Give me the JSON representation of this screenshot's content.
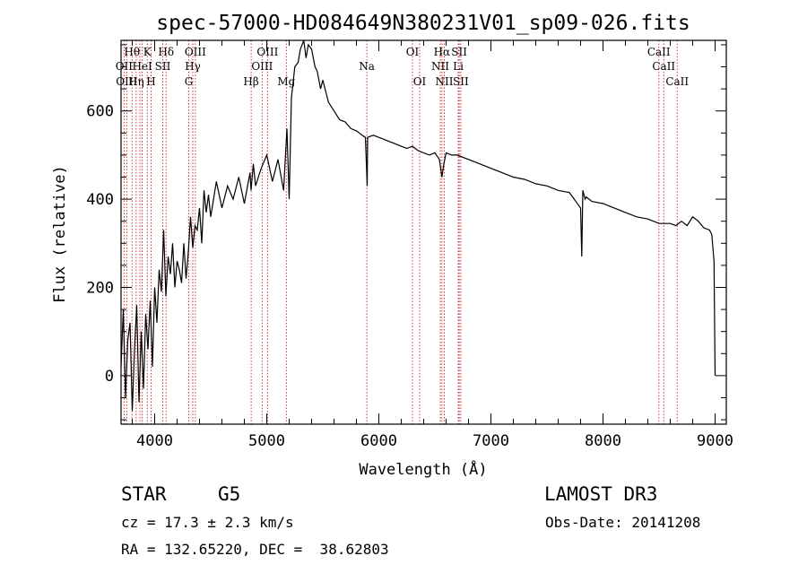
{
  "chart_data": {
    "type": "line",
    "title": "spec-57000-HD084649N380231V01_sp09-026.fits",
    "xlabel": "Wavelength (Å)",
    "ylabel": "Flux (relative)",
    "xlim": [
      3700,
      9100
    ],
    "ylim": [
      -110,
      760
    ],
    "xticks": [
      4000,
      5000,
      6000,
      7000,
      8000,
      9000
    ],
    "yticks": [
      0,
      200,
      400,
      600
    ],
    "grid": false,
    "series": [
      {
        "x": [
          3700,
          3720,
          3740,
          3760,
          3780,
          3800,
          3820,
          3840,
          3860,
          3880,
          3900,
          3920,
          3940,
          3960,
          3980,
          4000,
          4020,
          4040,
          4060,
          4080,
          4100,
          4120,
          4140,
          4160,
          4180,
          4200,
          4220,
          4240,
          4260,
          4280,
          4300,
          4320,
          4340,
          4360,
          4380,
          4400,
          4420,
          4440,
          4460,
          4480,
          4500,
          4550,
          4600,
          4650,
          4700,
          4750,
          4800,
          4850,
          4860,
          4880,
          4900,
          4950,
          5000,
          5050,
          5100,
          5150,
          5180,
          5200,
          5220,
          5250,
          5280,
          5300,
          5330,
          5350,
          5370,
          5400,
          5430,
          5450,
          5480,
          5500,
          5550,
          5600,
          5650,
          5700,
          5750,
          5800,
          5850,
          5880,
          5890,
          5896,
          5900,
          5950,
          6000,
          6050,
          6100,
          6150,
          6200,
          6250,
          6300,
          6350,
          6400,
          6450,
          6500,
          6540,
          6563,
          6580,
          6600,
          6650,
          6700,
          6750,
          6800,
          6900,
          7000,
          7100,
          7200,
          7300,
          7400,
          7500,
          7600,
          7700,
          7800,
          7810,
          7820,
          7830,
          7840,
          7850,
          7900,
          8000,
          8100,
          8200,
          8300,
          8400,
          8500,
          8600,
          8650,
          8700,
          8750,
          8800,
          8850,
          8900,
          8950,
          8970,
          8990,
          9000
        ],
        "values": [
          20,
          150,
          -50,
          80,
          120,
          -80,
          60,
          160,
          -60,
          100,
          -30,
          140,
          60,
          170,
          20,
          200,
          120,
          240,
          190,
          330,
          180,
          270,
          230,
          300,
          200,
          260,
          240,
          210,
          300,
          220,
          280,
          360,
          290,
          340,
          330,
          380,
          300,
          420,
          370,
          410,
          360,
          440,
          380,
          430,
          400,
          450,
          390,
          460,
          420,
          480,
          430,
          470,
          500,
          440,
          490,
          420,
          560,
          400,
          630,
          700,
          710,
          740,
          760,
          720,
          750,
          740,
          700,
          690,
          650,
          670,
          620,
          600,
          580,
          575,
          560,
          555,
          545,
          540,
          470,
          430,
          540,
          545,
          540,
          535,
          530,
          525,
          520,
          515,
          520,
          510,
          505,
          500,
          505,
          490,
          450,
          480,
          505,
          500,
          500,
          495,
          490,
          480,
          470,
          460,
          450,
          445,
          435,
          430,
          420,
          415,
          380,
          270,
          420,
          410,
          400,
          405,
          395,
          390,
          380,
          370,
          360,
          355,
          345,
          345,
          340,
          350,
          340,
          360,
          350,
          335,
          330,
          320,
          260,
          0
        ]
      }
    ],
    "lines": [
      {
        "w": 3727,
        "label": "OII",
        "row": 1
      },
      {
        "w": 3750,
        "label": "OIII",
        "row": 2
      },
      {
        "w": 3798,
        "label": "Hθ",
        "row": 0
      },
      {
        "w": 3835,
        "label": "Hη",
        "row": 2
      },
      {
        "w": 3868,
        "label": "",
        "row": 0
      },
      {
        "w": 3889,
        "label": "HeI",
        "row": 1
      },
      {
        "w": 3934,
        "label": "K",
        "row": 0
      },
      {
        "w": 3968,
        "label": "H",
        "row": 2
      },
      {
        "w": 4072,
        "label": "SII",
        "row": 1
      },
      {
        "w": 4102,
        "label": "Hδ",
        "row": 0
      },
      {
        "w": 4304,
        "label": "G",
        "row": 2
      },
      {
        "w": 4340,
        "label": "Hγ",
        "row": 1
      },
      {
        "w": 4363,
        "label": "OIII",
        "row": 0
      },
      {
        "w": 4861,
        "label": "Hβ",
        "row": 2
      },
      {
        "w": 4959,
        "label": "OIII",
        "row": 1
      },
      {
        "w": 5007,
        "label": "OIII",
        "row": 0
      },
      {
        "w": 5175,
        "label": "Mg",
        "row": 2
      },
      {
        "w": 5893,
        "label": "Na",
        "row": 1
      },
      {
        "w": 6300,
        "label": "OI",
        "row": 0
      },
      {
        "w": 6364,
        "label": "OI",
        "row": 2
      },
      {
        "w": 6548,
        "label": "NII",
        "row": 1
      },
      {
        "w": 6563,
        "label": "Hα",
        "row": 0
      },
      {
        "w": 6584,
        "label": "NII",
        "row": 2
      },
      {
        "w": 6708,
        "label": "Li",
        "row": 1
      },
      {
        "w": 6717,
        "label": "SII",
        "row": 0
      },
      {
        "w": 6731,
        "label": "SII",
        "row": 2
      },
      {
        "w": 8498,
        "label": "CaII",
        "row": 0
      },
      {
        "w": 8542,
        "label": "CaII",
        "row": 1
      },
      {
        "w": 8662,
        "label": "CaII",
        "row": 2
      }
    ]
  },
  "info": {
    "class": "STAR",
    "subclass": "G5",
    "survey": "LAMOST DR3",
    "cz": "cz = 17.3 ± 2.3 km/s",
    "obsdate": "Obs-Date: 20141208",
    "radec": "RA = 132.65220, DEC =  38.62803"
  },
  "colors": {
    "spectrum": "#000000",
    "line_marker": "#cc2222"
  }
}
